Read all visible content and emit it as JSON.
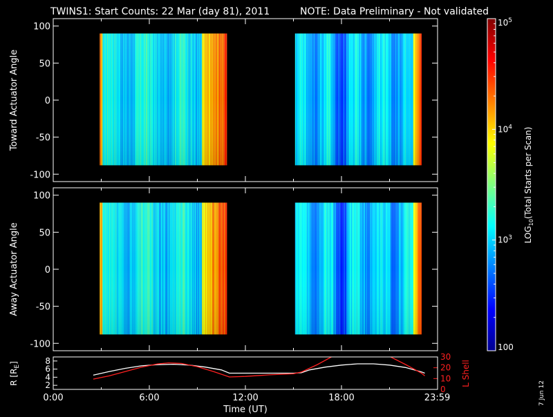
{
  "title": {
    "main": "TWINS1: Start Counts: 22 Mar (day  81), 2011",
    "note": "NOTE: Data Preliminary - Not validated",
    "note_color": "#ff2020"
  },
  "footer_date": "7 Jun 12",
  "chart_data": [
    {
      "type": "heatmap",
      "ylabel": "Toward Actuator Angle",
      "ylim": [
        -110,
        110
      ],
      "yticks": [
        "100",
        "50",
        "0",
        "-50",
        "-100"
      ],
      "ytick_values": [
        100,
        50,
        0,
        -50,
        -100
      ],
      "xlim": [
        0,
        24
      ],
      "data_segments_hours": [
        [
          2.9,
          10.85
        ],
        [
          15.1,
          23.0
        ]
      ],
      "angle_range": [
        -88,
        90
      ]
    },
    {
      "type": "heatmap",
      "ylabel": "Away Actuator Angle",
      "ylim": [
        -110,
        110
      ],
      "yticks": [
        "100",
        "50",
        "0",
        "-50",
        "-100"
      ],
      "ytick_values": [
        100,
        50,
        0,
        -50,
        -100
      ],
      "xlim": [
        0,
        24
      ],
      "data_segments_hours": [
        [
          2.9,
          10.85
        ],
        [
          15.1,
          23.0
        ]
      ],
      "angle_range": [
        -88,
        90
      ]
    },
    {
      "type": "line",
      "ylabel": "R [R",
      "ylabel_sub": "E",
      "ylabel_close": "]",
      "ylim": [
        1,
        9
      ],
      "yticks": [
        "8",
        "6",
        "4",
        "2"
      ],
      "ytick_values": [
        8,
        6,
        4,
        2
      ],
      "y2label": "L Shell",
      "y2lim": [
        0,
        30
      ],
      "y2ticks": [
        "30",
        "20",
        "10",
        "0"
      ],
      "y2tick_values": [
        30,
        20,
        10,
        0
      ],
      "xlabel": "Time (UT)",
      "xlim": [
        0,
        24
      ],
      "xticks": [
        "0:00",
        "6:00",
        "12:00",
        "18:00",
        "23:59"
      ],
      "xtick_values": [
        0,
        6,
        12,
        18,
        23.98
      ],
      "series": [
        {
          "color": "#ffffff",
          "x": [
            2.5,
            3.5,
            4.5,
            5.5,
            6.5,
            7.5,
            8.5,
            9.5,
            10.5,
            11,
            12,
            13,
            14,
            15,
            15.5,
            16,
            17,
            18,
            19,
            20,
            21,
            22,
            23,
            23.2
          ],
          "y": [
            4.5,
            5.4,
            6.2,
            6.8,
            7.1,
            7.2,
            7.0,
            6.5,
            5.8,
            5.0,
            5.0,
            5.0,
            5.0,
            5.0,
            5.1,
            5.8,
            6.5,
            7.0,
            7.3,
            7.3,
            7.0,
            6.4,
            5.3,
            5.0
          ]
        },
        {
          "color": "#ff2020",
          "x": [
            2.5,
            3.5,
            4.5,
            5.5,
            6.5,
            7.2,
            8.0,
            9.0,
            10.0,
            11.0,
            12.0,
            13.5,
            15.0,
            15.5,
            16.5,
            17.5,
            20.0,
            21.0,
            22.0,
            23.0,
            23.2
          ],
          "y": [
            9.5,
            12.5,
            16.5,
            20.5,
            23.5,
            24.5,
            24.0,
            21.0,
            16.5,
            11.5,
            12.0,
            13.5,
            14.5,
            16.0,
            23.0,
            31.0,
            31.0,
            30.5,
            23.0,
            15.0,
            12.5
          ]
        }
      ]
    }
  ],
  "colorbar": {
    "label": "LOG",
    "label_sub": "10",
    "label_rest": "(Total Starts per Scan)",
    "ticks": [
      {
        "base": "10",
        "exp": "5",
        "value": 100000
      },
      {
        "base": "10",
        "exp": "4",
        "value": 10000
      },
      {
        "base": "10",
        "exp": "3",
        "value": 1000
      },
      {
        "base": "100",
        "exp": "",
        "value": 100
      }
    ],
    "range": [
      100,
      100000
    ],
    "scale": "log"
  }
}
